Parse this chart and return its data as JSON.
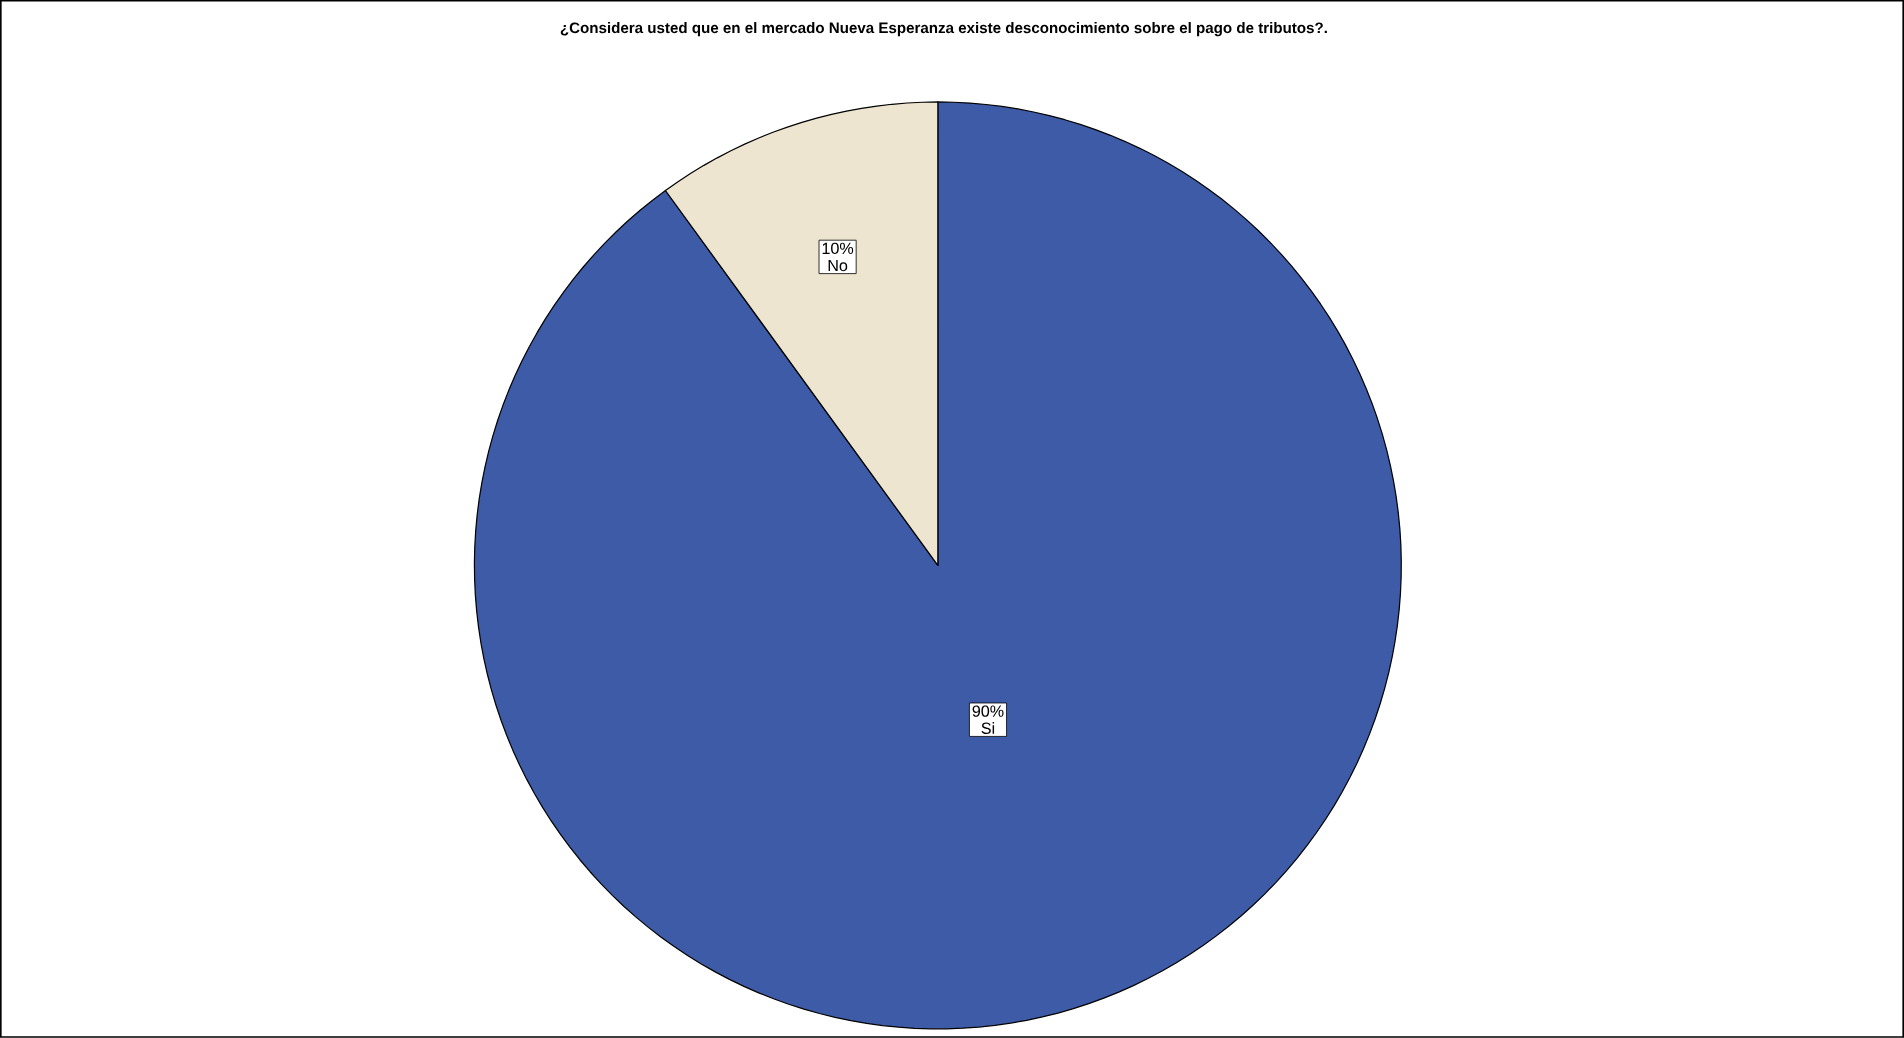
{
  "chart_data": {
    "type": "pie",
    "title": "¿Considera usted que en el mercado Nueva Esperanza existe desconocimiento sobre el pago de tributos?.",
    "categories": [
      "Si",
      "No"
    ],
    "values": [
      90,
      10
    ],
    "value_labels": [
      "90%",
      "10%"
    ],
    "colors": [
      "#3e5ba8",
      "#ede5d0"
    ]
  }
}
